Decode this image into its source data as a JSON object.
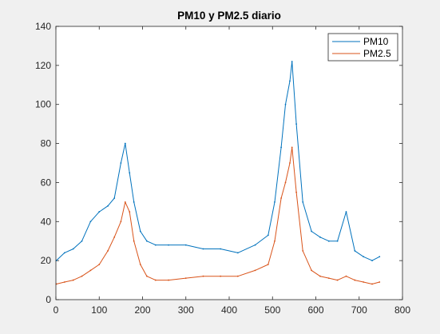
{
  "chart_data": {
    "type": "line",
    "title": "PM10 y PM2.5 diario",
    "xlabel": "",
    "ylabel": "",
    "xlim": [
      0,
      800
    ],
    "ylim": [
      0,
      140
    ],
    "xticks": [
      0,
      100,
      200,
      300,
      400,
      500,
      600,
      700,
      800
    ],
    "yticks": [
      0,
      20,
      40,
      60,
      80,
      100,
      120,
      140
    ],
    "grid": false,
    "legend_position": "top-right",
    "x": [
      1,
      20,
      40,
      60,
      80,
      100,
      120,
      135,
      150,
      160,
      170,
      180,
      195,
      210,
      230,
      260,
      300,
      340,
      380,
      420,
      460,
      490,
      505,
      520,
      530,
      540,
      545,
      555,
      570,
      590,
      610,
      630,
      650,
      670,
      690,
      710,
      730,
      747
    ],
    "series": [
      {
        "name": "PM10",
        "color": "#0072bd",
        "values": [
          20,
          24,
          26,
          30,
          40,
          45,
          48,
          52,
          70,
          80,
          65,
          50,
          35,
          30,
          28,
          28,
          28,
          26,
          26,
          24,
          28,
          33,
          50,
          78,
          100,
          112,
          122,
          90,
          50,
          35,
          32,
          30,
          30,
          45,
          25,
          22,
          20,
          22
        ]
      },
      {
        "name": "PM2.5",
        "color": "#d95319",
        "values": [
          8,
          9,
          10,
          12,
          15,
          18,
          25,
          32,
          40,
          50,
          45,
          30,
          18,
          12,
          10,
          10,
          11,
          12,
          12,
          12,
          15,
          18,
          30,
          52,
          60,
          70,
          78,
          55,
          25,
          15,
          12,
          11,
          10,
          12,
          10,
          9,
          8,
          9
        ]
      }
    ]
  }
}
